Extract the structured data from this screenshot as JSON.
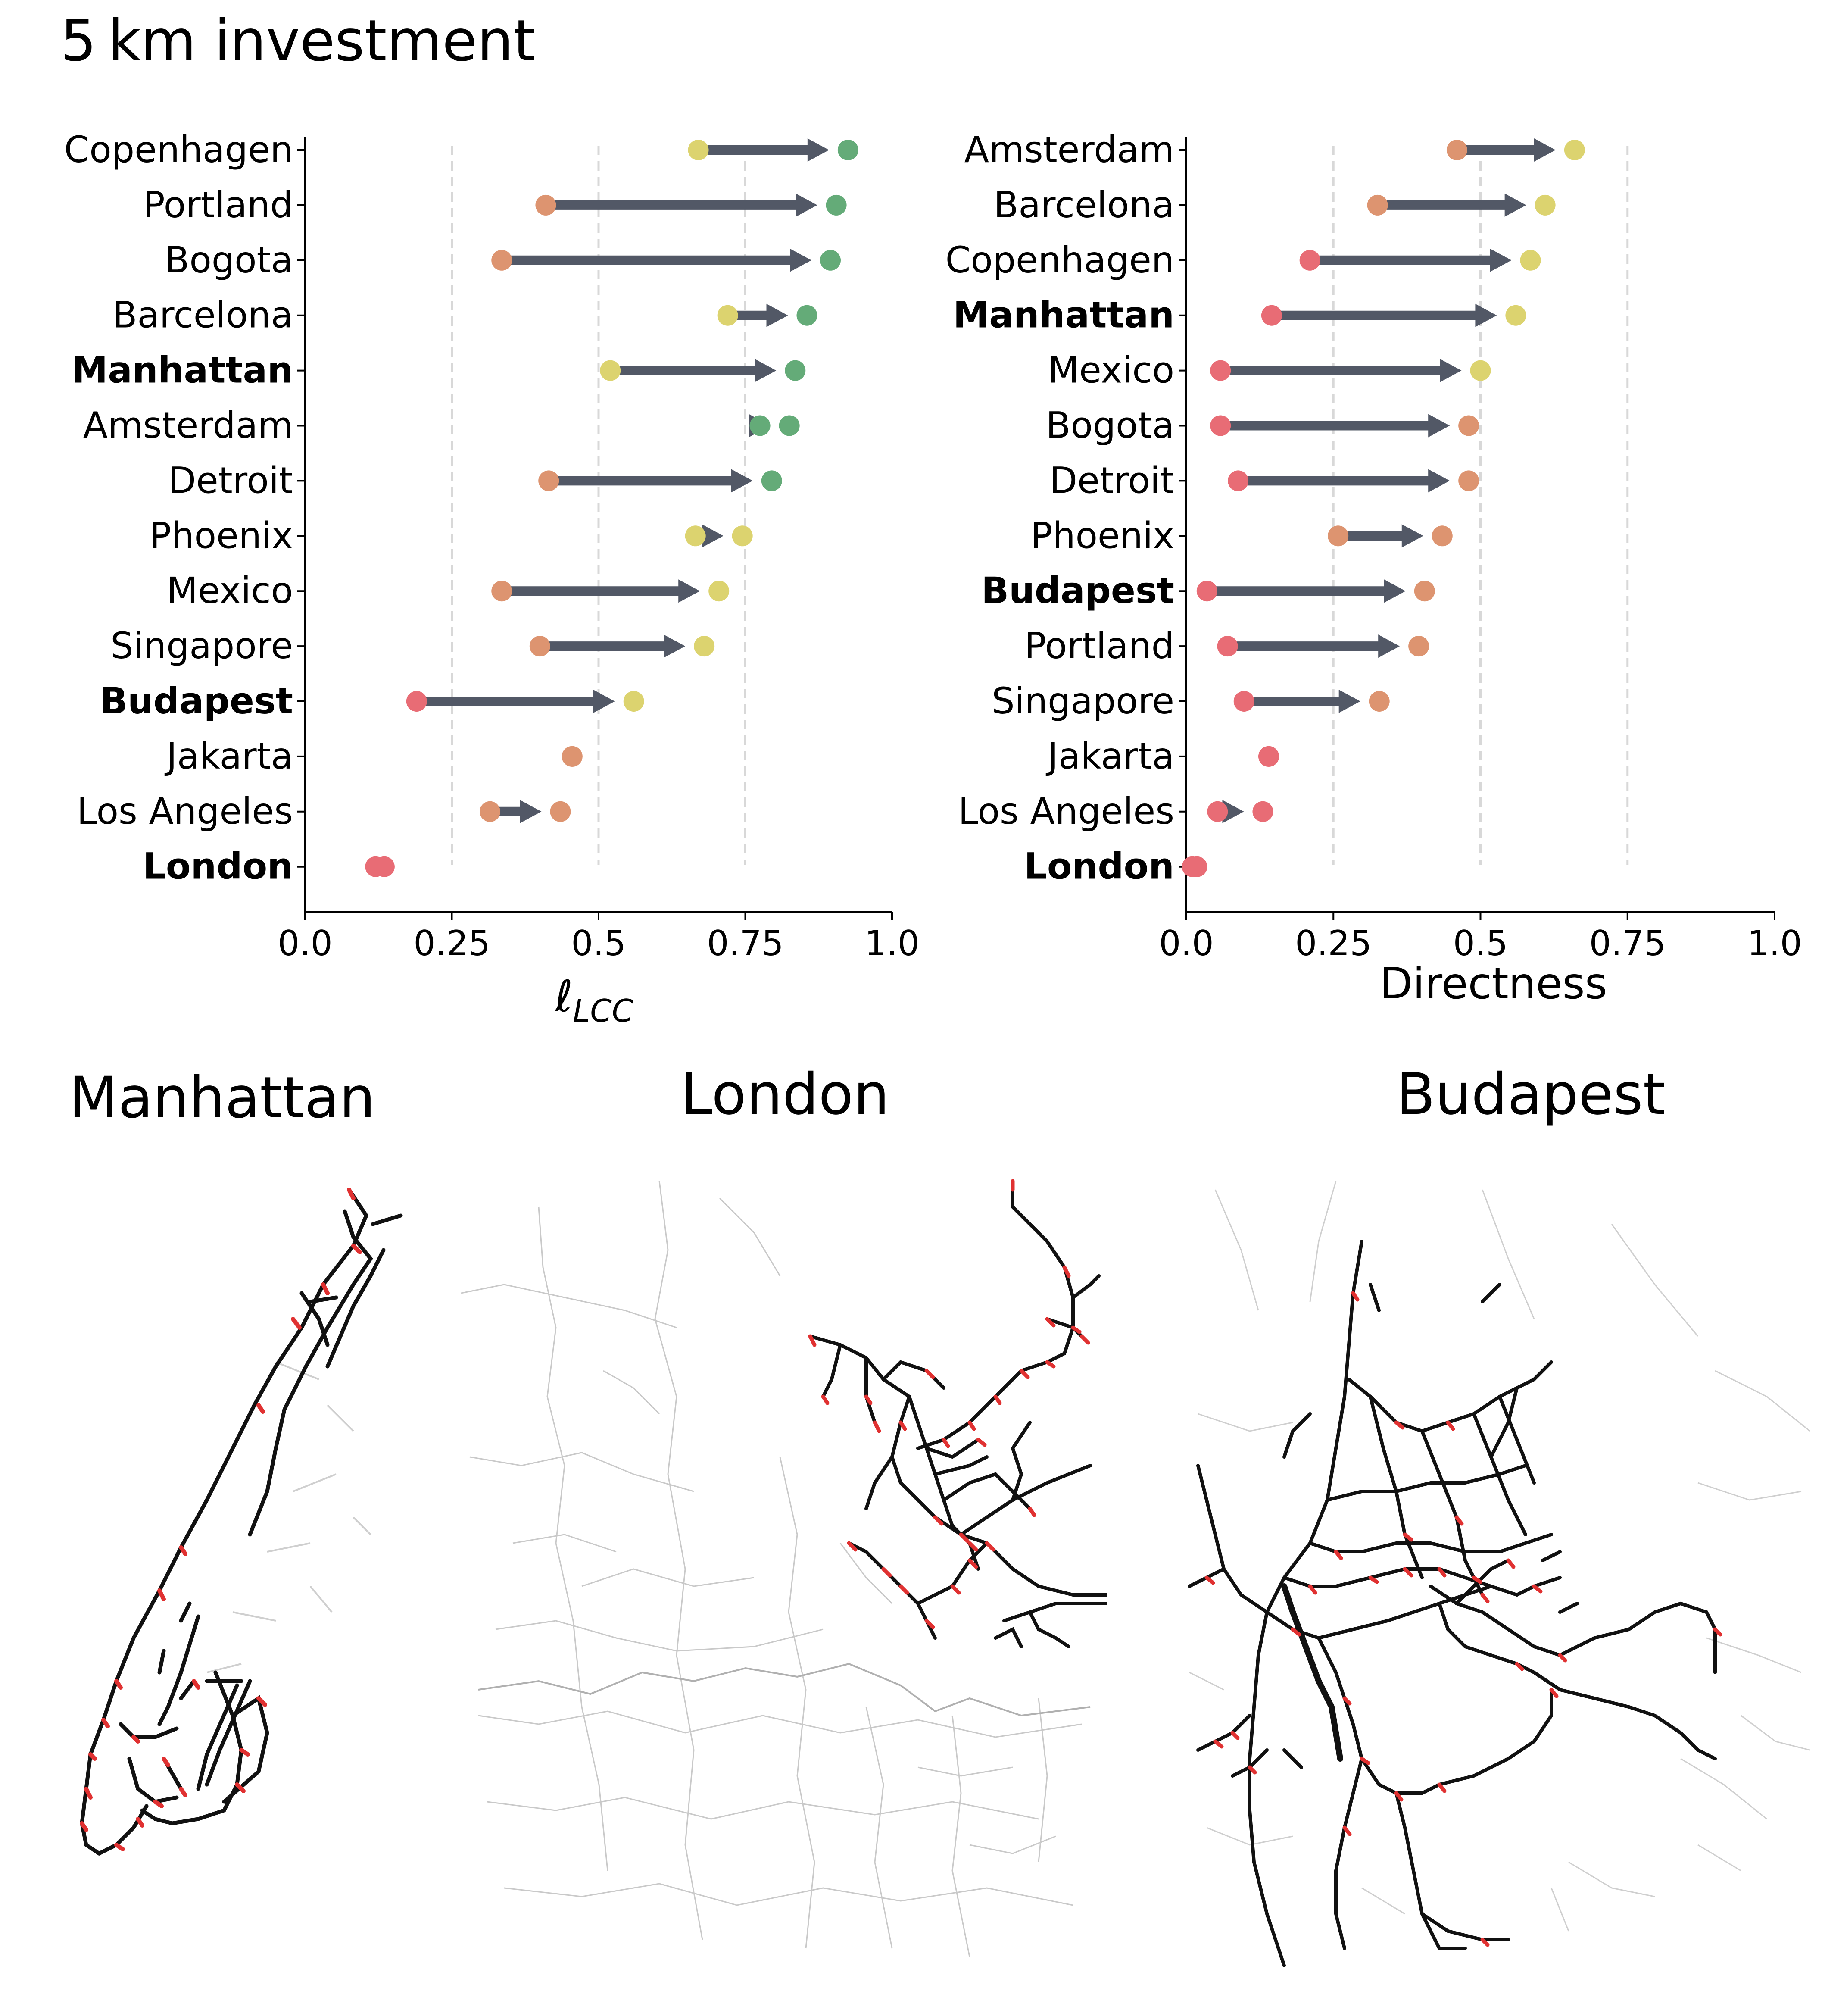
{
  "figure_title": "5 km investment",
  "colors": {
    "arrow": "#525866",
    "green": "#64ab78",
    "yellow": "#dcd36f",
    "orange": "#dd9470",
    "red": "#e86c75",
    "grid": "#d8d8d8",
    "axis": "#000000",
    "network": "#111111",
    "background_streets": "#c9c9c9",
    "new_links": "#e03131"
  },
  "chart_data": [
    {
      "type": "dumbbell-arrow",
      "xlabel": "ℓLCC",
      "xlabel_main": "ℓ",
      "xlabel_sub": "LCC",
      "xlim": [
        0.0,
        1.0
      ],
      "xticks": [
        "0.0",
        "0.25",
        "0.5",
        "0.75",
        "1.0"
      ],
      "xtick_values": [
        0.0,
        0.25,
        0.5,
        0.75,
        1.0
      ],
      "grid_lines": [
        0.25,
        0.5,
        0.75
      ],
      "rows": [
        {
          "city": "Copenhagen",
          "bold": false,
          "start": 0.67,
          "end": 0.925,
          "start_color": "yellow",
          "end_color": "green"
        },
        {
          "city": "Portland",
          "bold": false,
          "start": 0.41,
          "end": 0.905,
          "start_color": "orange",
          "end_color": "green"
        },
        {
          "city": "Bogota",
          "bold": false,
          "start": 0.335,
          "end": 0.895,
          "start_color": "orange",
          "end_color": "green"
        },
        {
          "city": "Barcelona",
          "bold": false,
          "start": 0.72,
          "end": 0.855,
          "start_color": "yellow",
          "end_color": "green"
        },
        {
          "city": "Manhattan",
          "bold": true,
          "start": 0.52,
          "end": 0.835,
          "start_color": "yellow",
          "end_color": "green"
        },
        {
          "city": "Amsterdam",
          "bold": false,
          "start": 0.775,
          "end": 0.825,
          "start_color": "green",
          "end_color": "green"
        },
        {
          "city": "Detroit",
          "bold": false,
          "start": 0.415,
          "end": 0.795,
          "start_color": "orange",
          "end_color": "green"
        },
        {
          "city": "Phoenix",
          "bold": false,
          "start": 0.665,
          "end": 0.745,
          "start_color": "yellow",
          "end_color": "yellow"
        },
        {
          "city": "Mexico",
          "bold": false,
          "start": 0.335,
          "end": 0.705,
          "start_color": "orange",
          "end_color": "yellow"
        },
        {
          "city": "Singapore",
          "bold": false,
          "start": 0.4,
          "end": 0.68,
          "start_color": "orange",
          "end_color": "yellow"
        },
        {
          "city": "Budapest",
          "bold": true,
          "start": 0.19,
          "end": 0.56,
          "start_color": "red",
          "end_color": "yellow"
        },
        {
          "city": "Jakarta",
          "bold": false,
          "start": 0.455,
          "end": 0.455,
          "start_color": "orange",
          "end_color": "orange"
        },
        {
          "city": "Los Angeles",
          "bold": false,
          "start": 0.315,
          "end": 0.435,
          "start_color": "orange",
          "end_color": "orange"
        },
        {
          "city": "London",
          "bold": true,
          "start": 0.12,
          "end": 0.135,
          "start_color": "red",
          "end_color": "red"
        }
      ]
    },
    {
      "type": "dumbbell-arrow",
      "xlabel": "Directness",
      "xlim": [
        0.0,
        1.0
      ],
      "xticks": [
        "0.0",
        "0.25",
        "0.5",
        "0.75",
        "1.0"
      ],
      "xtick_values": [
        0.0,
        0.25,
        0.5,
        0.75,
        1.0
      ],
      "grid_lines": [
        0.25,
        0.5,
        0.75
      ],
      "rows": [
        {
          "city": "Amsterdam",
          "bold": false,
          "start": 0.46,
          "end": 0.66,
          "start_color": "orange",
          "end_color": "yellow"
        },
        {
          "city": "Barcelona",
          "bold": false,
          "start": 0.325,
          "end": 0.61,
          "start_color": "orange",
          "end_color": "yellow"
        },
        {
          "city": "Copenhagen",
          "bold": false,
          "start": 0.21,
          "end": 0.585,
          "start_color": "red",
          "end_color": "yellow"
        },
        {
          "city": "Manhattan",
          "bold": true,
          "start": 0.145,
          "end": 0.56,
          "start_color": "red",
          "end_color": "yellow"
        },
        {
          "city": "Mexico",
          "bold": false,
          "start": 0.058,
          "end": 0.5,
          "start_color": "red",
          "end_color": "yellow"
        },
        {
          "city": "Bogota",
          "bold": false,
          "start": 0.058,
          "end": 0.48,
          "start_color": "red",
          "end_color": "orange"
        },
        {
          "city": "Detroit",
          "bold": false,
          "start": 0.088,
          "end": 0.48,
          "start_color": "red",
          "end_color": "orange"
        },
        {
          "city": "Phoenix",
          "bold": false,
          "start": 0.258,
          "end": 0.435,
          "start_color": "orange",
          "end_color": "orange"
        },
        {
          "city": "Budapest",
          "bold": true,
          "start": 0.035,
          "end": 0.405,
          "start_color": "red",
          "end_color": "orange"
        },
        {
          "city": "Portland",
          "bold": false,
          "start": 0.07,
          "end": 0.395,
          "start_color": "red",
          "end_color": "orange"
        },
        {
          "city": "Singapore",
          "bold": false,
          "start": 0.098,
          "end": 0.328,
          "start_color": "red",
          "end_color": "orange"
        },
        {
          "city": "Jakarta",
          "bold": false,
          "start": 0.14,
          "end": 0.14,
          "start_color": "red",
          "end_color": "red"
        },
        {
          "city": "Los Angeles",
          "bold": false,
          "start": 0.053,
          "end": 0.13,
          "start_color": "red",
          "end_color": "red"
        },
        {
          "city": "London",
          "bold": true,
          "start": 0.01,
          "end": 0.018,
          "start_color": "red",
          "end_color": "red"
        }
      ]
    }
  ],
  "maps": [
    {
      "title": "Manhattan"
    },
    {
      "title": "London"
    },
    {
      "title": "Budapest"
    }
  ]
}
